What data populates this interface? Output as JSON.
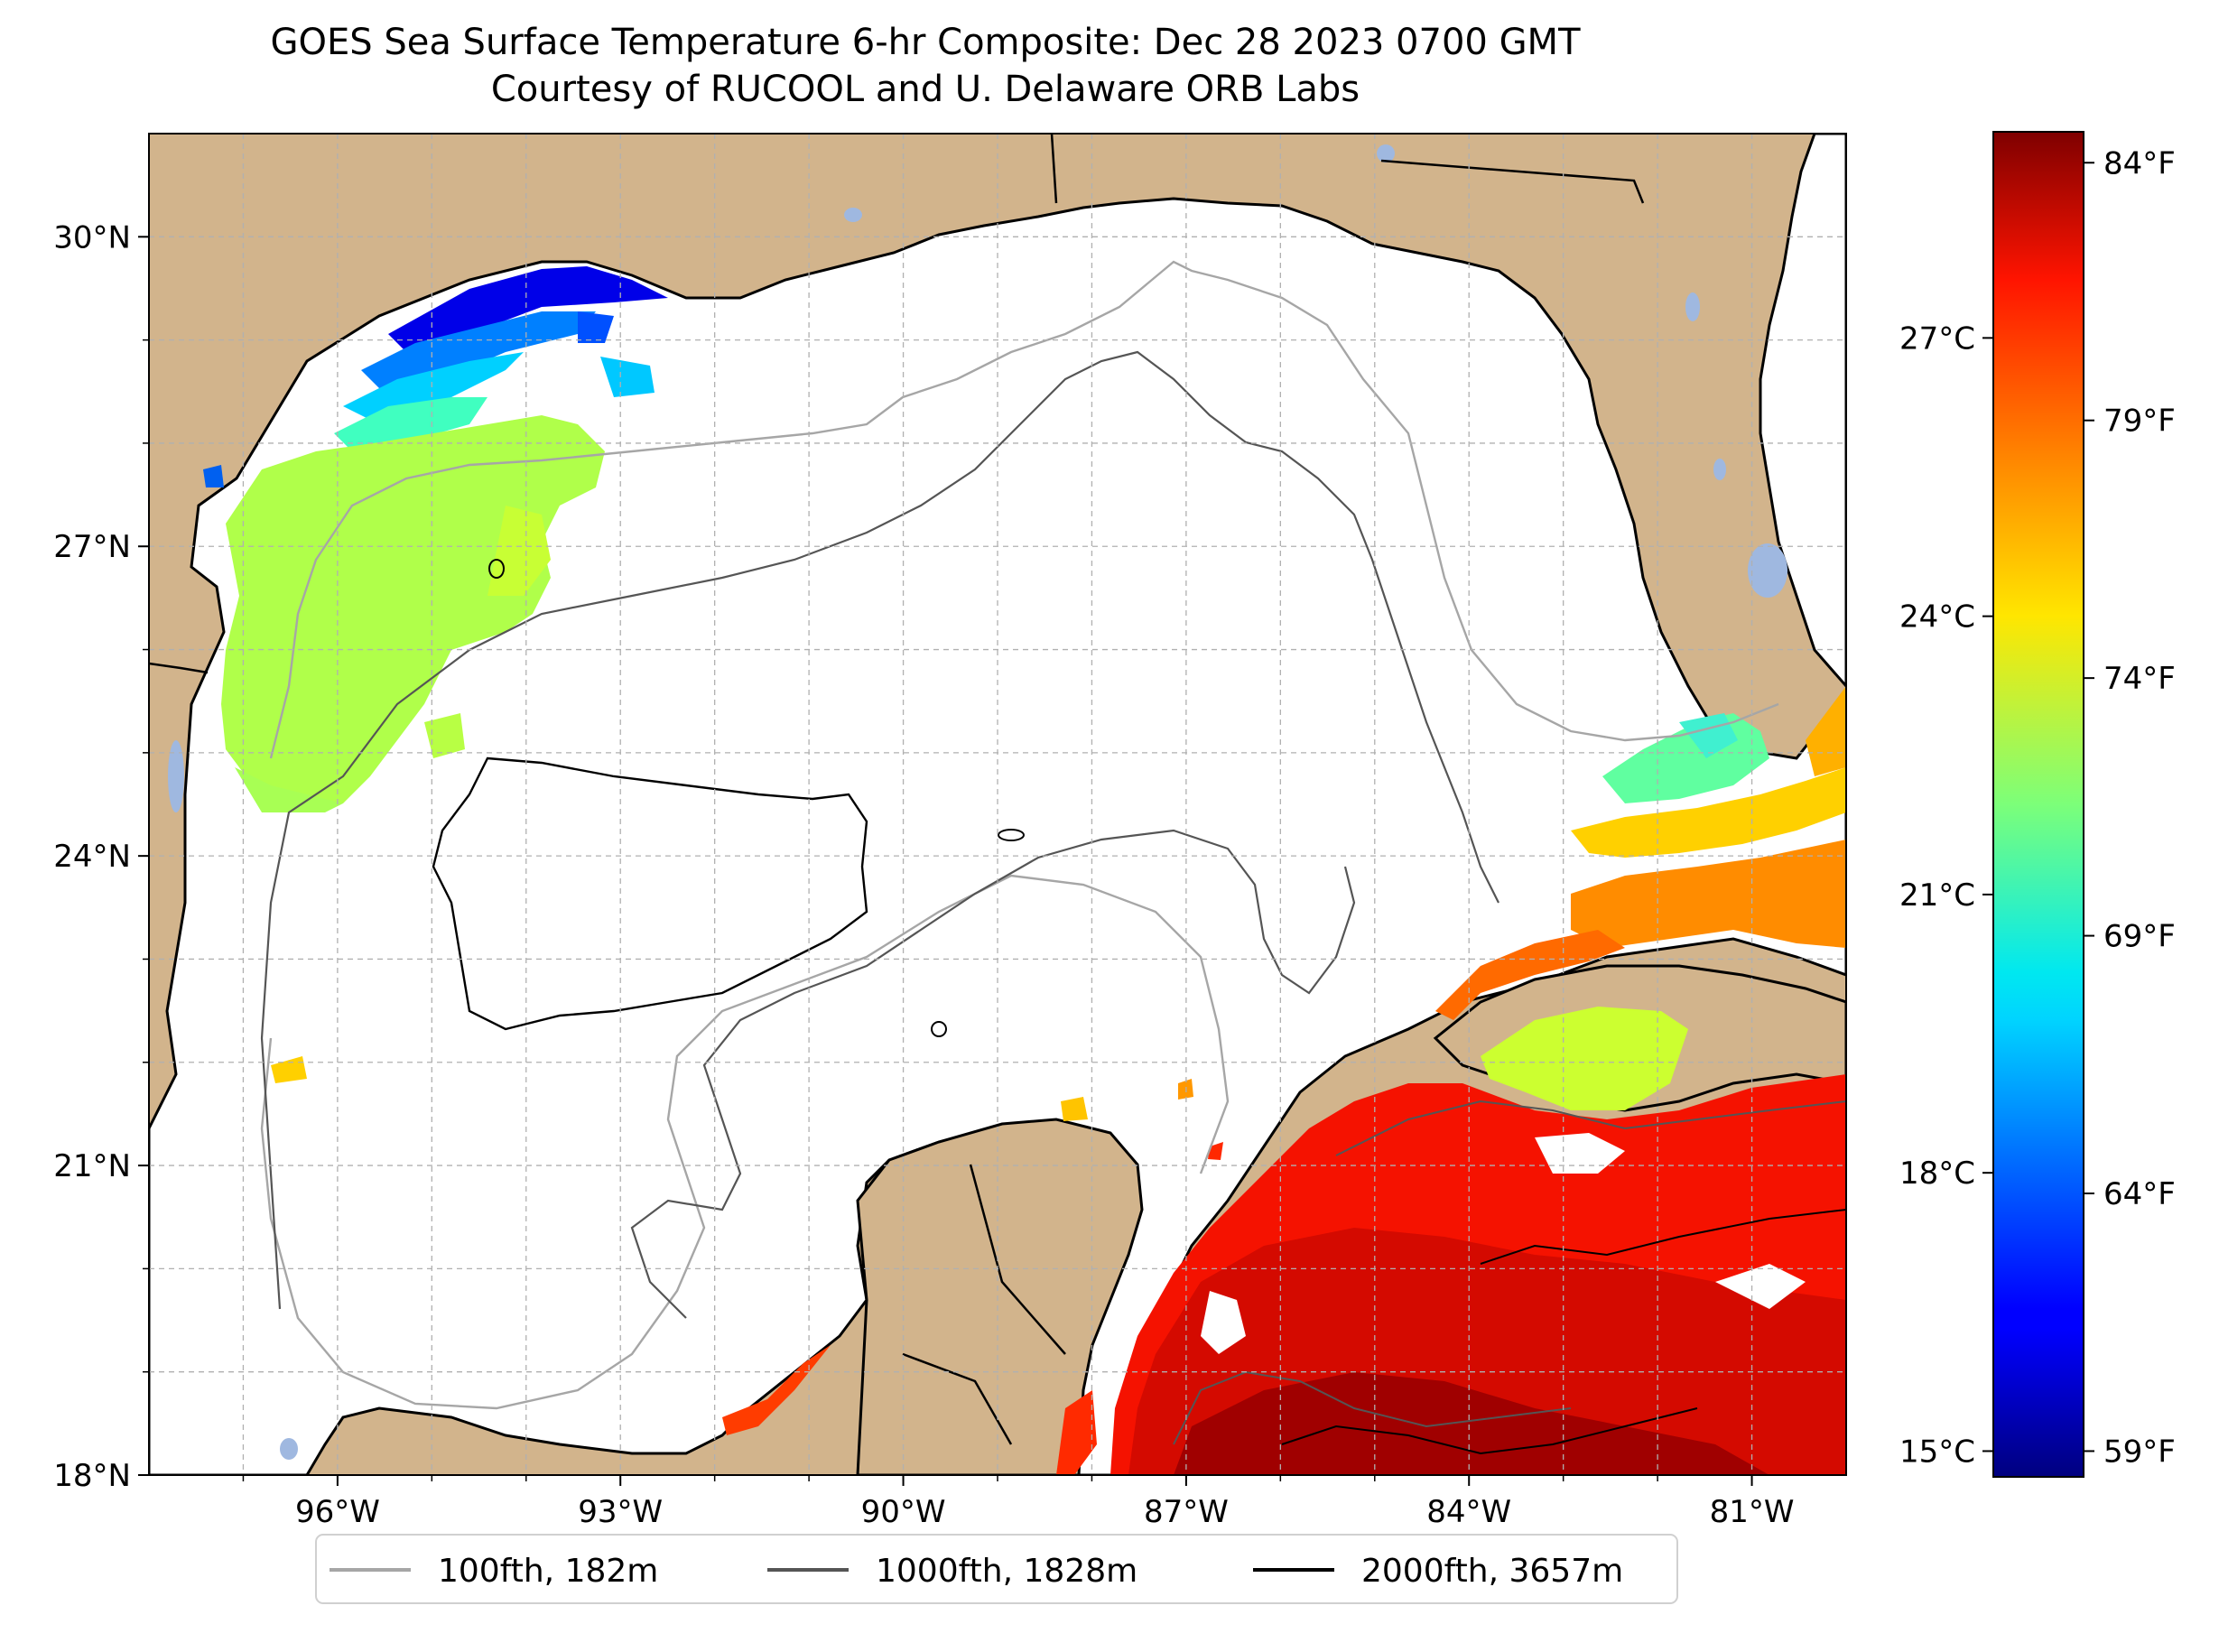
{
  "title": {
    "line1": "GOES Sea Surface Temperature 6-hr Composite: Dec 28 2023 0700 GMT",
    "line2": "Courtesy of RUCOOL and U. Delaware ORB Labs"
  },
  "map": {
    "lon_range": [
      -98,
      -80
    ],
    "lat_range": [
      18,
      31
    ],
    "lon_ticks": [
      {
        "lon": -96,
        "label": "96°W"
      },
      {
        "lon": -93,
        "label": "93°W"
      },
      {
        "lon": -90,
        "label": "90°W"
      },
      {
        "lon": -87,
        "label": "87°W"
      },
      {
        "lon": -84,
        "label": "84°W"
      },
      {
        "lon": -81,
        "label": "81°W"
      }
    ],
    "lat_ticks": [
      {
        "lat": 30,
        "label": "30°N"
      },
      {
        "lat": 27,
        "label": "27°N"
      },
      {
        "lat": 24,
        "label": "24°N"
      },
      {
        "lat": 21,
        "label": "21°N"
      },
      {
        "lat": 18,
        "label": "18°N"
      }
    ],
    "gridlines": "dashed",
    "colors": {
      "land": "#d2b48c",
      "lakes": "#9fb8e0",
      "ocean_no_data": "#ffffff",
      "grid": "#b0b0b0"
    }
  },
  "colorbar": {
    "colormap": "jet",
    "f_range": [
      58.5,
      84.6
    ],
    "celsius_ticks": [
      "27°C",
      "24°C",
      "21°C",
      "18°C",
      "15°C"
    ],
    "fahrenheit_ticks": [
      "84°F",
      "79°F",
      "74°F",
      "69°F",
      "64°F",
      "59°F"
    ]
  },
  "legend": [
    {
      "label": "100fth, 182m",
      "color": "#a6a6a6"
    },
    {
      "label": "1000fth, 1828m",
      "color": "#555555"
    },
    {
      "label": "2000fth, 3657m",
      "color": "#000000"
    }
  ]
}
